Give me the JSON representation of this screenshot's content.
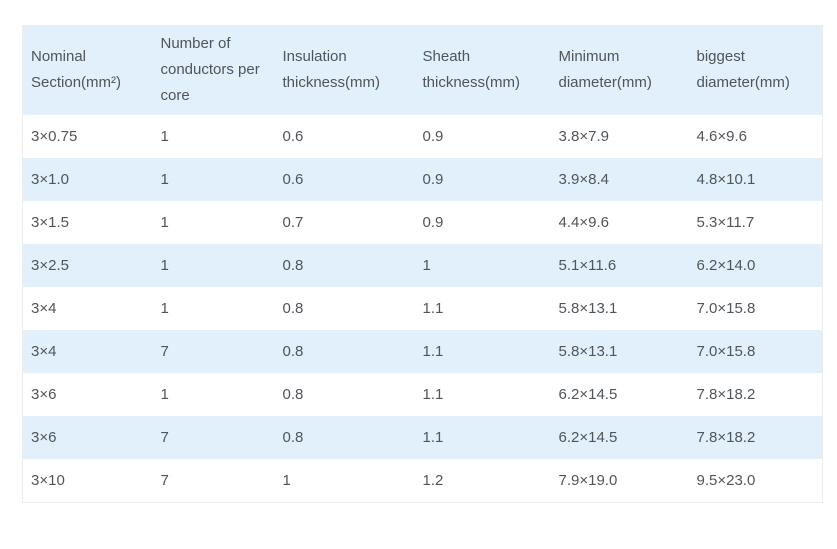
{
  "table": {
    "columns": [
      {
        "label": "Nominal Section(mm²)"
      },
      {
        "label": "Number of conductors per core"
      },
      {
        "label": "Insulation thickness(mm)"
      },
      {
        "label": "Sheath thickness(mm)"
      },
      {
        "label": "Minimum diameter(mm)"
      },
      {
        "label": "biggest diameter(mm)"
      }
    ],
    "rows": [
      {
        "cells": [
          "3×0.75",
          "1",
          "0.6",
          "0.9",
          "3.8×7.9",
          "4.6×9.6"
        ]
      },
      {
        "cells": [
          "3×1.0",
          "1",
          "0.6",
          "0.9",
          "3.9×8.4",
          "4.8×10.1"
        ]
      },
      {
        "cells": [
          "3×1.5",
          "1",
          "0.7",
          "0.9",
          "4.4×9.6",
          "5.3×11.7"
        ]
      },
      {
        "cells": [
          "3×2.5",
          "1",
          "0.8",
          "1",
          "5.1×11.6",
          "6.2×14.0"
        ]
      },
      {
        "cells": [
          "3×4",
          "1",
          "0.8",
          "1.1",
          "5.8×13.1",
          "7.0×15.8"
        ]
      },
      {
        "cells": [
          "3×4",
          "7",
          "0.8",
          "1.1",
          "5.8×13.1",
          "7.0×15.8"
        ]
      },
      {
        "cells": [
          "3×6",
          "1",
          "0.8",
          "1.1",
          "6.2×14.5",
          "7.8×18.2"
        ]
      },
      {
        "cells": [
          "3×6",
          "7",
          "0.8",
          "1.1",
          "6.2×14.5",
          "7.8×18.2"
        ]
      },
      {
        "cells": [
          "3×10",
          "7",
          "1",
          "1.2",
          "7.9×19.0",
          "9.5×23.0"
        ]
      }
    ]
  },
  "colors": {
    "header_bg": "#e1f0fa",
    "stripe_bg": "#e1f0fa",
    "row_bg": "#ffffff",
    "text_color": "#50555a",
    "border_color": "#ededed",
    "page_bg": "#ffffff"
  }
}
